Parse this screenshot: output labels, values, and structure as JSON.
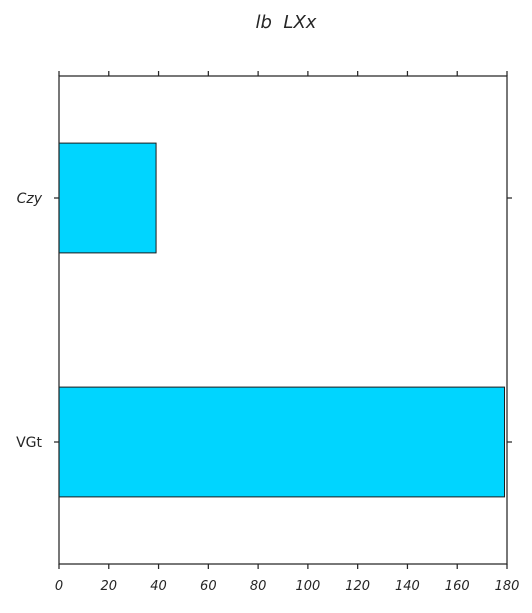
{
  "chart_data": {
    "type": "bar",
    "orientation": "horizontal",
    "title": "lb  LXx",
    "xlabel": "",
    "ylabel": "",
    "categories": [
      "Czy",
      "VGt"
    ],
    "category_styles": [
      "italic",
      "normal"
    ],
    "values": [
      39,
      179
    ],
    "xlim": [
      0,
      180
    ],
    "xticks": [
      0,
      20,
      40,
      60,
      80,
      100,
      120,
      140,
      160,
      180
    ],
    "xtick_labels": [
      "0",
      "20",
      "40",
      "60",
      "80",
      "100",
      "120",
      "140",
      "160",
      "180"
    ],
    "bar_color": "#00d5ff",
    "grid": false,
    "legend": "none"
  }
}
